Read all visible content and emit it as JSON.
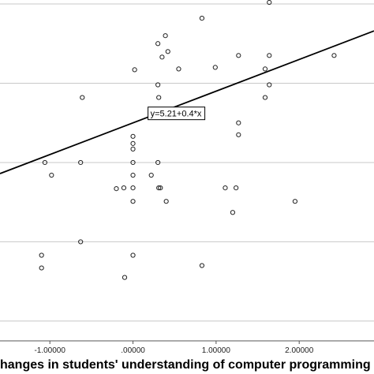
{
  "chart_data": {
    "type": "scatter",
    "xlabel": "hanges in students' understanding of computer programming",
    "xlim": [
      -1.6,
      2.9
    ],
    "ylim": [
      -2.75,
      1.55
    ],
    "x_ticks": [
      {
        "value": -1,
        "label": "-1.00000"
      },
      {
        "value": 0,
        "label": ".00000"
      },
      {
        "value": 1,
        "label": "1.00000"
      },
      {
        "value": 2,
        "label": "2.00000"
      }
    ],
    "y_gridlines": [
      -2.5,
      -1.5,
      -0.5,
      0.5,
      1.5
    ],
    "grid": true,
    "fit_line": {
      "intercept": 5.21,
      "slope": 0.4,
      "y_offset": -5.21,
      "label": "y=5.21+0.4*x",
      "label_at": [
        0.2,
        0.12
      ]
    },
    "points": [
      [
        -1.1,
        -1.67
      ],
      [
        -1.1,
        -1.83
      ],
      [
        -1.06,
        -0.5
      ],
      [
        -0.98,
        -0.66
      ],
      [
        -0.63,
        -0.5
      ],
      [
        -0.63,
        -1.5
      ],
      [
        -0.61,
        0.32
      ],
      [
        -0.2,
        -0.83
      ],
      [
        -0.11,
        -0.82
      ],
      [
        -0.1,
        -1.95
      ],
      [
        0.0,
        -0.5
      ],
      [
        0.0,
        -0.33
      ],
      [
        0.0,
        -0.26
      ],
      [
        0.0,
        -0.66
      ],
      [
        0.0,
        -0.82
      ],
      [
        0.0,
        -0.99
      ],
      [
        0.0,
        -1.67
      ],
      [
        0.0,
        -0.17
      ],
      [
        0.02,
        0.67
      ],
      [
        0.22,
        -0.66
      ],
      [
        0.31,
        -0.82
      ],
      [
        0.3,
        0.16
      ],
      [
        0.31,
        0.32
      ],
      [
        0.3,
        0.48
      ],
      [
        0.3,
        -0.5
      ],
      [
        0.3,
        1.0
      ],
      [
        0.33,
        -0.82
      ],
      [
        0.39,
        1.1
      ],
      [
        0.4,
        -0.99
      ],
      [
        0.35,
        0.83
      ],
      [
        0.42,
        0.9
      ],
      [
        0.55,
        0.68
      ],
      [
        0.83,
        1.32
      ],
      [
        0.83,
        -1.8
      ],
      [
        0.99,
        0.7
      ],
      [
        1.11,
        -0.82
      ],
      [
        1.2,
        -1.13
      ],
      [
        1.24,
        -0.82
      ],
      [
        1.27,
        0.85
      ],
      [
        1.27,
        0.0
      ],
      [
        1.27,
        -0.15
      ],
      [
        1.59,
        0.68
      ],
      [
        1.59,
        0.32
      ],
      [
        1.64,
        1.52
      ],
      [
        1.64,
        0.48
      ],
      [
        1.64,
        0.85
      ],
      [
        1.95,
        -0.99
      ],
      [
        2.42,
        0.85
      ]
    ]
  }
}
